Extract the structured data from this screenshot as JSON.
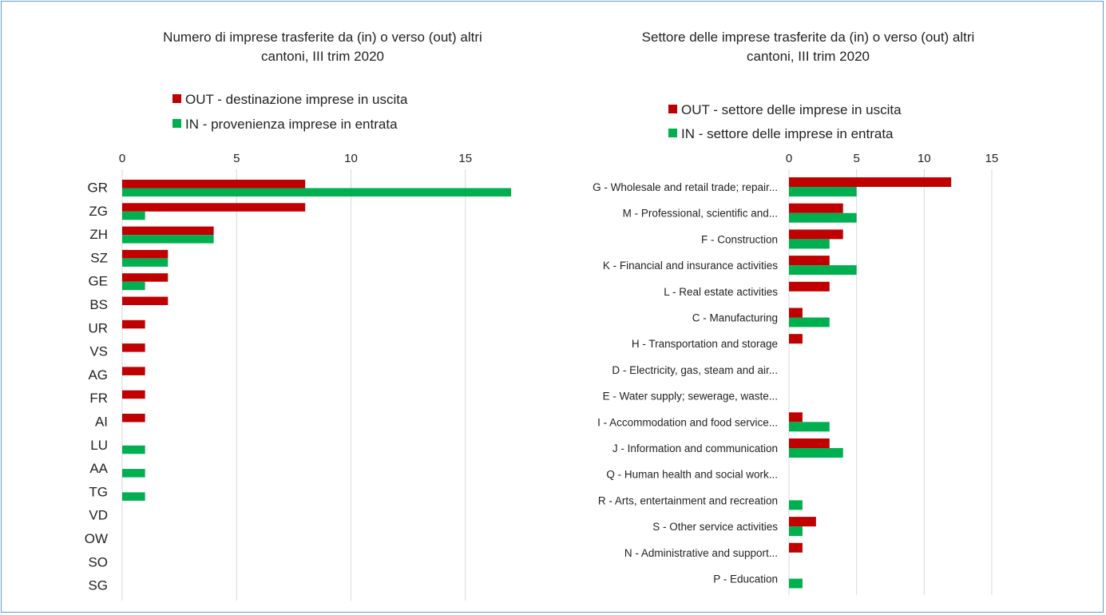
{
  "colors": {
    "out": "#c00000",
    "in": "#00b050"
  },
  "charts": [
    {
      "title_line1": "Numero di imprese trasferite da (in) o verso (out) altri",
      "title_line2": "cantoni, III trim 2020",
      "legend_out": "OUT - destinazione imprese in uscita",
      "legend_in": "IN - provenienza imprese in entrata"
    },
    {
      "title_line1": "Settore delle imprese trasferite da (in) o verso (out) altri",
      "title_line2": "cantoni, III trim 2020",
      "legend_out": "OUT - settore delle imprese in uscita",
      "legend_in": "IN - settore delle imprese in entrata"
    }
  ],
  "chart_data": [
    {
      "type": "bar",
      "orientation": "horizontal",
      "title": "Numero di imprese trasferite da (in) o verso (out) altri cantoni, III trim 2020",
      "categories": [
        "GR",
        "ZG",
        "ZH",
        "SZ",
        "GE",
        "BS",
        "UR",
        "VS",
        "AG",
        "FR",
        "AI",
        "LU",
        "AA",
        "TG",
        "VD",
        "OW",
        "SO",
        "SG"
      ],
      "series": [
        {
          "name": "OUT - destinazione imprese in uscita",
          "values": [
            8,
            8,
            4,
            2,
            2,
            2,
            1,
            1,
            1,
            1,
            1,
            0,
            0,
            0,
            0,
            0,
            0,
            0
          ]
        },
        {
          "name": "IN - provenienza imprese in entrata",
          "values": [
            17,
            1,
            4,
            2,
            1,
            0,
            0,
            0,
            0,
            0,
            0,
            1,
            1,
            1,
            0,
            0,
            0,
            0
          ]
        }
      ],
      "xlim": [
        0,
        20
      ],
      "xticks": [
        "0",
        "5",
        "10",
        "15"
      ],
      "grid": true,
      "legend_position": "top"
    },
    {
      "type": "bar",
      "orientation": "horizontal",
      "title": "Settore delle imprese trasferite da (in) o verso (out) altri cantoni, III trim 2020",
      "categories": [
        "G - Wholesale and retail trade; repair...",
        "M - Professional, scientific and...",
        "F - Construction",
        "K - Financial and insurance activities",
        "L - Real estate activities",
        "C - Manufacturing",
        "H - Transportation and storage",
        "D - Electricity, gas, steam and air...",
        "E - Water supply; sewerage, waste...",
        "I - Accommodation and food service...",
        "J - Information and communication",
        "Q - Human health and social work...",
        "R - Arts, entertainment and recreation",
        "S - Other service activities",
        "N - Administrative and support...",
        "P - Education"
      ],
      "series": [
        {
          "name": "OUT - settore delle imprese in uscita",
          "values": [
            12,
            4,
            4,
            3,
            3,
            1,
            1,
            0,
            0,
            1,
            3,
            0,
            0,
            2,
            1,
            0
          ]
        },
        {
          "name": "IN - settore delle imprese in entrata",
          "values": [
            5,
            5,
            3,
            5,
            0,
            3,
            0,
            0,
            0,
            3,
            4,
            0,
            1,
            1,
            0,
            1
          ]
        }
      ],
      "xlim": [
        0,
        15
      ],
      "xticks": [
        "0",
        "5",
        "10",
        "15"
      ],
      "grid": true,
      "legend_position": "top"
    }
  ]
}
